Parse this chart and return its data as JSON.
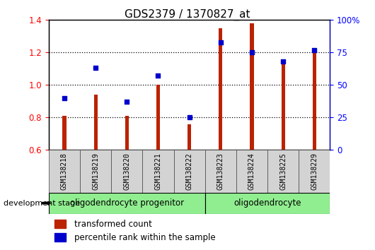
{
  "title": "GDS2379 / 1370827_at",
  "samples": [
    "GSM138218",
    "GSM138219",
    "GSM138220",
    "GSM138221",
    "GSM138222",
    "GSM138223",
    "GSM138224",
    "GSM138225",
    "GSM138229"
  ],
  "transformed_count": [
    0.81,
    0.94,
    0.81,
    1.0,
    0.76,
    1.35,
    1.38,
    1.13,
    1.21
  ],
  "percentile_rank": [
    40,
    63,
    37,
    57,
    25,
    83,
    75,
    68,
    77
  ],
  "bar_color": "#bb2200",
  "dot_color": "#0000cc",
  "ylim_left": [
    0.6,
    1.4
  ],
  "ylim_right": [
    0,
    100
  ],
  "yticks_left": [
    0.6,
    0.8,
    1.0,
    1.2,
    1.4
  ],
  "yticks_right": [
    0,
    25,
    50,
    75,
    100
  ],
  "ytick_labels_right": [
    "0",
    "25",
    "50",
    "75",
    "100%"
  ],
  "group1_label": "oligodendrocyte progenitor",
  "group2_label": "oligodendrocyte",
  "group1_samples": 5,
  "group2_samples": 4,
  "group_color": "#90ee90",
  "dev_stage_label": "development stage",
  "legend_bar_label": "transformed count",
  "legend_dot_label": "percentile rank within the sample",
  "bar_width": 0.12,
  "background_color": "#ffffff",
  "plot_bg_color": "#ffffff",
  "title_fontsize": 11,
  "tick_fontsize": 8.5,
  "sample_fontsize": 7,
  "group_fontsize": 8.5
}
